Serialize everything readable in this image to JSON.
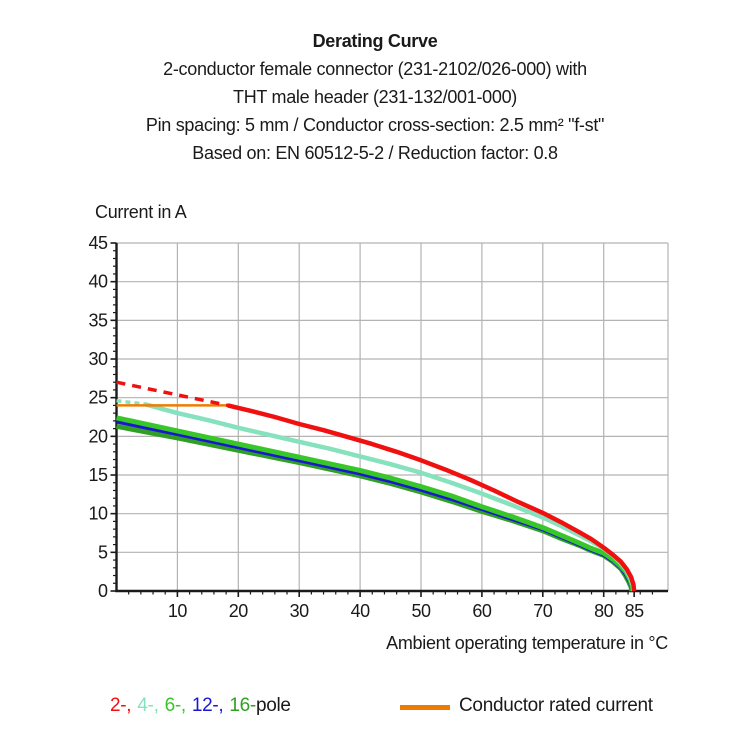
{
  "header": {
    "title": "Derating Curve",
    "subtitle_lines": [
      "2-conductor female connector (231-2102/026-000) with",
      "THT male header (231-132/001-000)",
      "Pin spacing: 5 mm / Conductor cross-section: 2.5 mm² \"f-st\"",
      "Based on: EN 60512-5-2 / Reduction factor: 0.8"
    ]
  },
  "chart_data": {
    "type": "line",
    "title": "Derating Curve",
    "xlabel": "Ambient operating temperature in °C",
    "ylabel": "Current in A",
    "xlim": [
      0,
      90.5
    ],
    "ylim": [
      0,
      45
    ],
    "x_ticks": [
      10,
      20,
      30,
      40,
      50,
      60,
      70,
      80,
      85
    ],
    "y_ticks": [
      0,
      5,
      10,
      15,
      20,
      25,
      30,
      35,
      40,
      45
    ],
    "x_minor_step": 2,
    "y_minor_step": 1,
    "grid": true,
    "grid_color": "#b3b3b3",
    "axis_color": "#1a1a1a",
    "legend_position": "bottom",
    "series": [
      {
        "name": "16-pole",
        "color": "#2fa023",
        "width": 5,
        "dash": null,
        "points": [
          [
            0,
            21.3
          ],
          [
            10,
            19.8
          ],
          [
            20,
            18.2
          ],
          [
            30,
            16.6
          ],
          [
            40,
            14.9
          ],
          [
            45,
            13.9
          ],
          [
            50,
            12.8
          ],
          [
            55,
            11.6
          ],
          [
            60,
            10.3
          ],
          [
            65,
            9.1
          ],
          [
            70,
            7.8
          ],
          [
            73,
            6.8
          ],
          [
            76,
            5.9
          ],
          [
            78,
            5.2
          ],
          [
            80,
            4.6
          ],
          [
            81.5,
            3.8
          ],
          [
            82.8,
            2.9
          ],
          [
            83.5,
            2.1
          ],
          [
            84.1,
            1.2
          ],
          [
            84.5,
            0.5
          ],
          [
            84.6,
            0
          ]
        ]
      },
      {
        "name": "12-pole",
        "color": "#1a17cf",
        "width": 4,
        "dash": null,
        "points": [
          [
            0,
            21.9
          ],
          [
            10,
            20.3
          ],
          [
            20,
            18.6
          ],
          [
            30,
            16.9
          ],
          [
            40,
            15.2
          ],
          [
            45,
            14.2
          ],
          [
            50,
            13.1
          ],
          [
            55,
            11.9
          ],
          [
            60,
            10.6
          ],
          [
            65,
            9.3
          ],
          [
            70,
            8.0
          ],
          [
            73,
            7.0
          ],
          [
            76,
            6.0
          ],
          [
            78,
            5.3
          ],
          [
            80,
            4.7
          ],
          [
            81.5,
            3.9
          ],
          [
            82.8,
            3.0
          ],
          [
            83.6,
            2.2
          ],
          [
            84.2,
            1.3
          ],
          [
            84.6,
            0.5
          ],
          [
            84.7,
            0
          ]
        ]
      },
      {
        "name": "6-pole",
        "color": "#38c728",
        "width": 5,
        "dash": null,
        "points": [
          [
            0,
            22.4
          ],
          [
            10,
            20.7
          ],
          [
            20,
            19.0
          ],
          [
            30,
            17.3
          ],
          [
            40,
            15.6
          ],
          [
            45,
            14.6
          ],
          [
            50,
            13.5
          ],
          [
            55,
            12.3
          ],
          [
            60,
            10.9
          ],
          [
            65,
            9.6
          ],
          [
            70,
            8.2
          ],
          [
            73,
            7.2
          ],
          [
            76,
            6.2
          ],
          [
            78,
            5.5
          ],
          [
            80,
            4.9
          ],
          [
            81.5,
            4.1
          ],
          [
            82.8,
            3.2
          ],
          [
            83.7,
            2.4
          ],
          [
            84.3,
            1.5
          ],
          [
            84.7,
            0.6
          ],
          [
            84.8,
            0
          ]
        ]
      },
      {
        "name": "4-pole-dashed",
        "color": "#85e2bd",
        "width": 3.5,
        "dash": "5 4",
        "points": [
          [
            0,
            24.6
          ],
          [
            4.5,
            24.2
          ]
        ]
      },
      {
        "name": "4-pole",
        "color": "#85e2bd",
        "width": 4.5,
        "dash": null,
        "points": [
          [
            4.5,
            24.2
          ],
          [
            10,
            23.0
          ],
          [
            15,
            22.1
          ],
          [
            20,
            21.1
          ],
          [
            25,
            20.2
          ],
          [
            30,
            19.3
          ],
          [
            35,
            18.4
          ],
          [
            40,
            17.4
          ],
          [
            45,
            16.4
          ],
          [
            50,
            15.3
          ],
          [
            55,
            14.0
          ],
          [
            60,
            12.6
          ],
          [
            65,
            11.1
          ],
          [
            70,
            9.5
          ],
          [
            73,
            8.4
          ],
          [
            76,
            7.2
          ],
          [
            78,
            6.4
          ],
          [
            80,
            5.5
          ],
          [
            81.5,
            4.6
          ],
          [
            82.8,
            3.6
          ],
          [
            83.7,
            2.7
          ],
          [
            84.4,
            1.6
          ],
          [
            84.8,
            0.7
          ],
          [
            84.9,
            0
          ]
        ]
      },
      {
        "name": "conductor-rated-current",
        "color": "#ef7c00",
        "width": 2.5,
        "dash": null,
        "points": [
          [
            0,
            24
          ],
          [
            18.5,
            24
          ]
        ]
      },
      {
        "name": "2-pole-dashed",
        "color": "#f01010",
        "width": 3.5,
        "dash": "9 7",
        "points": [
          [
            0,
            27
          ],
          [
            18.3,
            24
          ]
        ]
      },
      {
        "name": "2-pole",
        "color": "#f01010",
        "width": 4.5,
        "dash": null,
        "points": [
          [
            18.3,
            24
          ],
          [
            22,
            23.3
          ],
          [
            26,
            22.5
          ],
          [
            30,
            21.6
          ],
          [
            34,
            20.8
          ],
          [
            38,
            19.9
          ],
          [
            42,
            19.0
          ],
          [
            46,
            18.0
          ],
          [
            50,
            16.9
          ],
          [
            54,
            15.7
          ],
          [
            58,
            14.4
          ],
          [
            62,
            13.0
          ],
          [
            66,
            11.5
          ],
          [
            70,
            10.1
          ],
          [
            73,
            8.9
          ],
          [
            76,
            7.6
          ],
          [
            78,
            6.7
          ],
          [
            80,
            5.6
          ],
          [
            81.5,
            4.7
          ],
          [
            82.8,
            3.8
          ],
          [
            83.8,
            2.8
          ],
          [
            84.5,
            1.8
          ],
          [
            84.9,
            0.8
          ],
          [
            85,
            0
          ]
        ]
      }
    ]
  },
  "legend": {
    "pole_items": [
      {
        "label": "2-,",
        "color": "#f01010"
      },
      {
        "label": "4-,",
        "color": "#85e2bd"
      },
      {
        "label": "6-,",
        "color": "#38c728"
      },
      {
        "label": "12-,",
        "color": "#1a17cf"
      },
      {
        "label": "16-",
        "color": "#2fa023"
      },
      {
        "label": "pole",
        "color": "#1a1a1a"
      }
    ],
    "rated": {
      "label": "Conductor rated current",
      "color": "#ef7c00"
    }
  }
}
